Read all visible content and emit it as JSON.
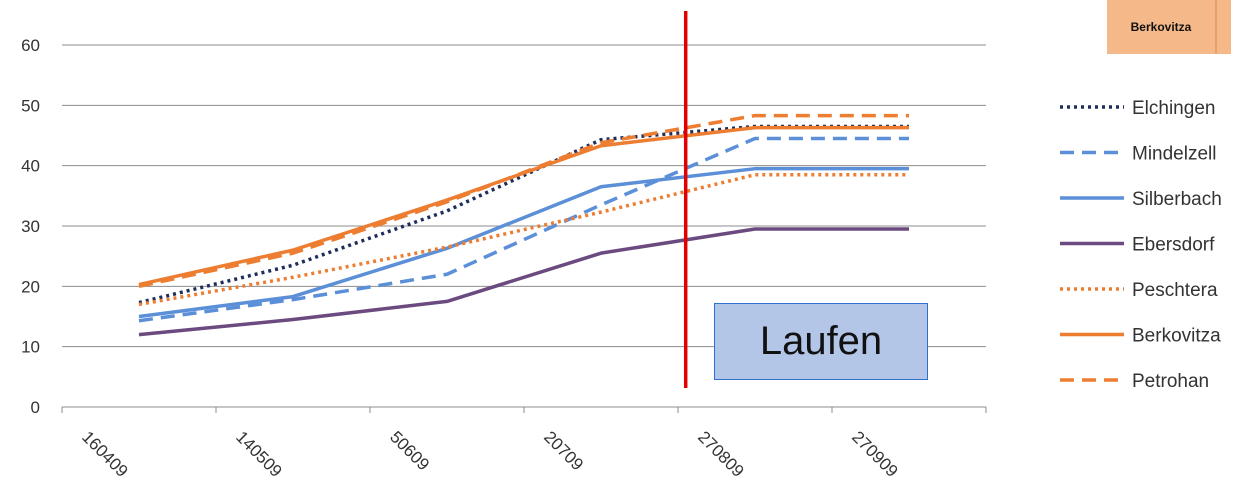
{
  "tag_label": "Berkovitza",
  "box_label": "Laufen",
  "chart_data": {
    "type": "line",
    "categories": [
      "160409",
      "140509",
      "50609",
      "20709",
      "270809",
      "270909"
    ],
    "ylim": [
      0,
      60
    ],
    "yticks": [
      0,
      10,
      20,
      30,
      40,
      50,
      60
    ],
    "grid": true,
    "legend_position": "right",
    "marker_line": {
      "after_category_index": 3,
      "fraction": 0.55,
      "color": "#e00000"
    },
    "series": [
      {
        "name": "Elchingen",
        "values": [
          17.3,
          23.5,
          32.5,
          44.3,
          46.5,
          46.5
        ],
        "color": "#1f2d5c",
        "style": "dotted"
      },
      {
        "name": "Mindelzell",
        "values": [
          14.3,
          17.8,
          22.0,
          33.5,
          44.5,
          44.5
        ],
        "color": "#5b8fd8",
        "style": "dashed"
      },
      {
        "name": "Silberbach",
        "values": [
          15.0,
          18.3,
          26.3,
          36.5,
          39.5,
          39.5
        ],
        "color": "#5b8fd8",
        "style": "solid"
      },
      {
        "name": "Ebersdorf",
        "values": [
          12.0,
          14.5,
          17.5,
          25.5,
          29.5,
          29.5
        ],
        "color": "#6b4a80",
        "style": "solid"
      },
      {
        "name": "Peschtera",
        "values": [
          17.0,
          21.5,
          26.5,
          32.3,
          38.5,
          38.5
        ],
        "color": "#ed7d31",
        "style": "dotted"
      },
      {
        "name": "Berkovitza",
        "values": [
          20.3,
          26.0,
          34.3,
          43.3,
          46.3,
          46.3
        ],
        "color": "#ed7d31",
        "style": "solid"
      },
      {
        "name": "Petrohan",
        "values": [
          20.0,
          25.5,
          34.0,
          43.8,
          48.3,
          48.3
        ],
        "color": "#ed7d31",
        "style": "dashed"
      }
    ]
  }
}
